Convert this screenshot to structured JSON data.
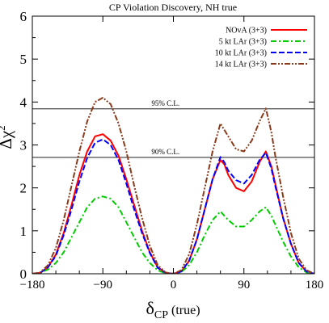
{
  "chart_data": {
    "type": "line",
    "title": "CP Violation Discovery, NH true",
    "xlabel": "δ",
    "xlabel_sub": "CP",
    "xlabel_suffix": " (true)",
    "ylabel": "Δχ",
    "ylabel_sup": "2",
    "xlim": [
      -180,
      180
    ],
    "ylim": [
      0,
      6
    ],
    "x_ticks": [
      -180,
      -90,
      0,
      90,
      180
    ],
    "y_ticks": [
      0,
      1,
      2,
      3,
      4,
      5,
      6
    ],
    "grid": false,
    "legend_position": "top-right",
    "reference_lines": [
      {
        "label": "95% C.L.",
        "y": 3.84
      },
      {
        "label": "90% C.L.",
        "y": 2.71
      }
    ],
    "series": [
      {
        "name": "NOvA (3+3)",
        "color": "#ff0000",
        "dash": "solid",
        "x": [
          -180,
          -170,
          -160,
          -150,
          -140,
          -130,
          -120,
          -110,
          -100,
          -90,
          -80,
          -70,
          -60,
          -50,
          -40,
          -30,
          -20,
          -10,
          0,
          10,
          20,
          30,
          40,
          50,
          60,
          65,
          70,
          80,
          90,
          100,
          110,
          118,
          125,
          130,
          140,
          150,
          160,
          170,
          180
        ],
        "y": [
          0,
          0.02,
          0.15,
          0.45,
          0.95,
          1.6,
          2.3,
          2.85,
          3.2,
          3.25,
          3.1,
          2.75,
          2.2,
          1.6,
          1.0,
          0.5,
          0.15,
          0.02,
          0,
          0.05,
          0.3,
          0.8,
          1.5,
          2.2,
          2.65,
          2.55,
          2.3,
          2.0,
          1.92,
          2.15,
          2.6,
          2.85,
          2.5,
          2.1,
          1.3,
          0.7,
          0.25,
          0.05,
          0
        ]
      },
      {
        "name": "5 kt LAr (3+3)",
        "color": "#00cc00",
        "dash": "dashdot",
        "x": [
          -180,
          -170,
          -160,
          -150,
          -140,
          -130,
          -120,
          -110,
          -100,
          -90,
          -80,
          -70,
          -60,
          -50,
          -40,
          -30,
          -20,
          -10,
          0,
          10,
          20,
          30,
          40,
          50,
          60,
          70,
          80,
          90,
          100,
          110,
          118,
          125,
          130,
          140,
          150,
          160,
          170,
          180
        ],
        "y": [
          0,
          0.02,
          0.1,
          0.25,
          0.5,
          0.85,
          1.2,
          1.55,
          1.75,
          1.8,
          1.75,
          1.55,
          1.2,
          0.85,
          0.5,
          0.25,
          0.08,
          0.01,
          0,
          0.04,
          0.2,
          0.5,
          0.9,
          1.25,
          1.45,
          1.25,
          1.1,
          1.1,
          1.25,
          1.45,
          1.55,
          1.35,
          1.15,
          0.75,
          0.4,
          0.15,
          0.03,
          0
        ]
      },
      {
        "name": "10 kt LAr (3+3)",
        "color": "#0000ff",
        "dash": "dashed",
        "x": [
          -180,
          -170,
          -160,
          -150,
          -140,
          -130,
          -120,
          -110,
          -100,
          -90,
          -80,
          -70,
          -60,
          -50,
          -40,
          -30,
          -20,
          -10,
          0,
          10,
          20,
          30,
          40,
          50,
          60,
          65,
          70,
          80,
          90,
          100,
          110,
          118,
          125,
          130,
          140,
          150,
          160,
          170,
          180
        ],
        "y": [
          0,
          0.02,
          0.15,
          0.42,
          0.9,
          1.5,
          2.15,
          2.7,
          3.05,
          3.13,
          3.0,
          2.65,
          2.1,
          1.5,
          0.95,
          0.48,
          0.14,
          0.02,
          0,
          0.05,
          0.3,
          0.8,
          1.5,
          2.2,
          2.72,
          2.6,
          2.4,
          2.18,
          2.1,
          2.3,
          2.65,
          2.82,
          2.45,
          2.05,
          1.3,
          0.7,
          0.25,
          0.05,
          0
        ]
      },
      {
        "name": "14 kt LAr (3+3)",
        "color": "#8b3a1a",
        "dash": "dashdotdot",
        "x": [
          -180,
          -170,
          -160,
          -150,
          -140,
          -130,
          -120,
          -110,
          -100,
          -90,
          -80,
          -70,
          -60,
          -50,
          -40,
          -30,
          -20,
          -10,
          0,
          10,
          20,
          30,
          40,
          50,
          60,
          70,
          80,
          90,
          100,
          110,
          118,
          125,
          130,
          140,
          150,
          160,
          170,
          180
        ],
        "y": [
          0,
          0.03,
          0.2,
          0.6,
          1.25,
          2.05,
          2.85,
          3.55,
          4.0,
          4.1,
          3.95,
          3.5,
          2.85,
          2.05,
          1.3,
          0.65,
          0.2,
          0.03,
          0,
          0.08,
          0.45,
          1.15,
          2.0,
          2.85,
          3.5,
          3.2,
          2.9,
          2.85,
          3.1,
          3.55,
          3.85,
          3.3,
          2.75,
          1.8,
          0.95,
          0.35,
          0.08,
          0
        ]
      }
    ]
  }
}
